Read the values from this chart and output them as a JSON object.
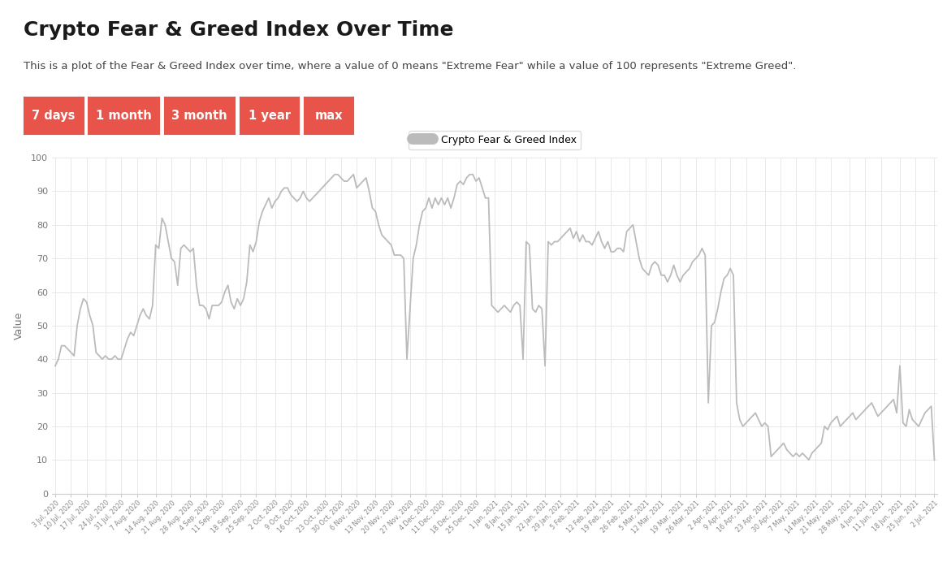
{
  "title": "Crypto Fear & Greed Index Over Time",
  "subtitle": "This is a plot of the Fear & Greed Index over time, where a value of 0 means \"Extreme Fear\" while a value of 100 represents \"Extreme Greed\".",
  "ylabel": "Value",
  "legend_label": "Crypto Fear & Greed Index",
  "buttons": [
    "7 days",
    "1 month",
    "3 month",
    "1 year",
    "max"
  ],
  "button_color": "#e8534a",
  "button_text_color": "#ffffff",
  "line_color": "#bbbbbb",
  "background_color": "#ffffff",
  "plot_bg": "#ffffff",
  "grid_color": "#e8e8e8",
  "ylim": [
    0,
    100
  ],
  "yticks": [
    0,
    10,
    20,
    30,
    40,
    50,
    60,
    70,
    80,
    90,
    100
  ],
  "xtick_labels": [
    "3 Jul, 2020",
    "10 Jul, 2020",
    "17 Jul, 2020",
    "24 Jul, 2020",
    "31 Jul, 2020",
    "7 Aug, 2020",
    "14 Aug, 2020",
    "21 Aug, 2020",
    "28 Aug, 2020",
    "4 Sep, 2020",
    "11 Sep, 2020",
    "18 Sep, 2020",
    "25 Sep, 2020",
    "2 Oct, 2020",
    "9 Oct, 2020",
    "16 Oct, 2020",
    "23 Oct, 2020",
    "30 Oct, 2020",
    "6 Nov, 2020",
    "13 Nov, 2020",
    "20 Nov, 2020",
    "27 Nov, 2020",
    "4 Dec, 2020",
    "11 Dec, 2020",
    "18 Dec, 2020",
    "25 Dec, 2020",
    "1 Jan, 2021",
    "8 Jan, 2021",
    "15 Jan, 2021",
    "22 Jan, 2021",
    "29 Jan, 2021",
    "5 Feb, 2021",
    "12 Feb, 2021",
    "19 Feb, 2021",
    "26 Feb, 2021",
    "5 Mar, 2021",
    "12 Mar, 2021",
    "19 Mar, 2021",
    "26 Mar, 2021",
    "2 Apr, 2021",
    "9 Apr, 2021",
    "16 Apr, 2021",
    "23 Apr, 2021",
    "30 Apr, 2021",
    "7 May, 2021",
    "14 May, 2021",
    "21 May, 2021",
    "28 May, 2021",
    "4 Jun, 2021",
    "11 Jun, 2021",
    "18 Jun, 2021",
    "25 Jun, 2021",
    "2 Jul, 2021"
  ],
  "values": [
    38,
    40,
    44,
    44,
    43,
    42,
    41,
    50,
    55,
    58,
    57,
    53,
    50,
    42,
    41,
    40,
    41,
    40,
    40,
    41,
    40,
    40,
    43,
    46,
    48,
    47,
    50,
    53,
    55,
    53,
    52,
    56,
    74,
    73,
    82,
    80,
    75,
    70,
    69,
    62,
    73,
    74,
    73,
    72,
    73,
    62,
    56,
    56,
    55,
    52,
    56,
    56,
    56,
    57,
    60,
    62,
    57,
    55,
    58,
    56,
    58,
    63,
    74,
    72,
    75,
    81,
    84,
    86,
    88,
    85,
    87,
    88,
    90,
    91,
    91,
    89,
    88,
    87,
    88,
    90,
    88,
    87,
    88,
    89,
    90,
    91,
    92,
    93,
    94,
    95,
    95,
    94,
    93,
    93,
    94,
    95,
    91,
    92,
    93,
    94,
    90,
    85,
    84,
    80,
    77,
    76,
    75,
    74,
    71,
    71,
    71,
    70,
    40,
    55,
    70,
    74,
    80,
    84,
    85,
    88,
    85,
    88,
    86,
    88,
    86,
    88,
    85,
    88,
    92,
    93,
    92,
    94,
    95,
    95,
    93,
    94,
    91,
    88,
    88,
    56,
    55,
    54,
    55,
    56,
    55,
    54,
    56,
    57,
    56,
    40,
    75,
    74,
    55,
    54,
    56,
    55,
    38,
    75,
    74,
    75,
    75,
    76,
    77,
    78,
    79,
    76,
    78,
    75,
    77,
    75,
    75,
    74,
    76,
    78,
    75,
    73,
    75,
    72,
    72,
    73,
    73,
    72,
    78,
    79,
    80,
    75,
    70,
    67,
    66,
    65,
    68,
    69,
    68,
    65,
    65,
    63,
    65,
    68,
    65,
    63,
    65,
    66,
    67,
    69,
    70,
    71,
    73,
    71,
    27,
    50,
    51,
    55,
    60,
    64,
    65,
    67,
    65,
    27,
    22,
    20,
    21,
    22,
    23,
    24,
    22,
    20,
    21,
    20,
    11,
    12,
    13,
    14,
    15,
    13,
    12,
    11,
    12,
    11,
    12,
    11,
    10,
    12,
    13,
    14,
    15,
    20,
    19,
    21,
    22,
    23,
    20,
    21,
    22,
    23,
    24,
    22,
    23,
    24,
    25,
    26,
    27,
    25,
    23,
    24,
    25,
    26,
    27,
    28,
    24,
    38,
    21,
    20,
    25,
    22,
    21,
    20,
    22,
    24,
    25,
    26,
    10
  ]
}
